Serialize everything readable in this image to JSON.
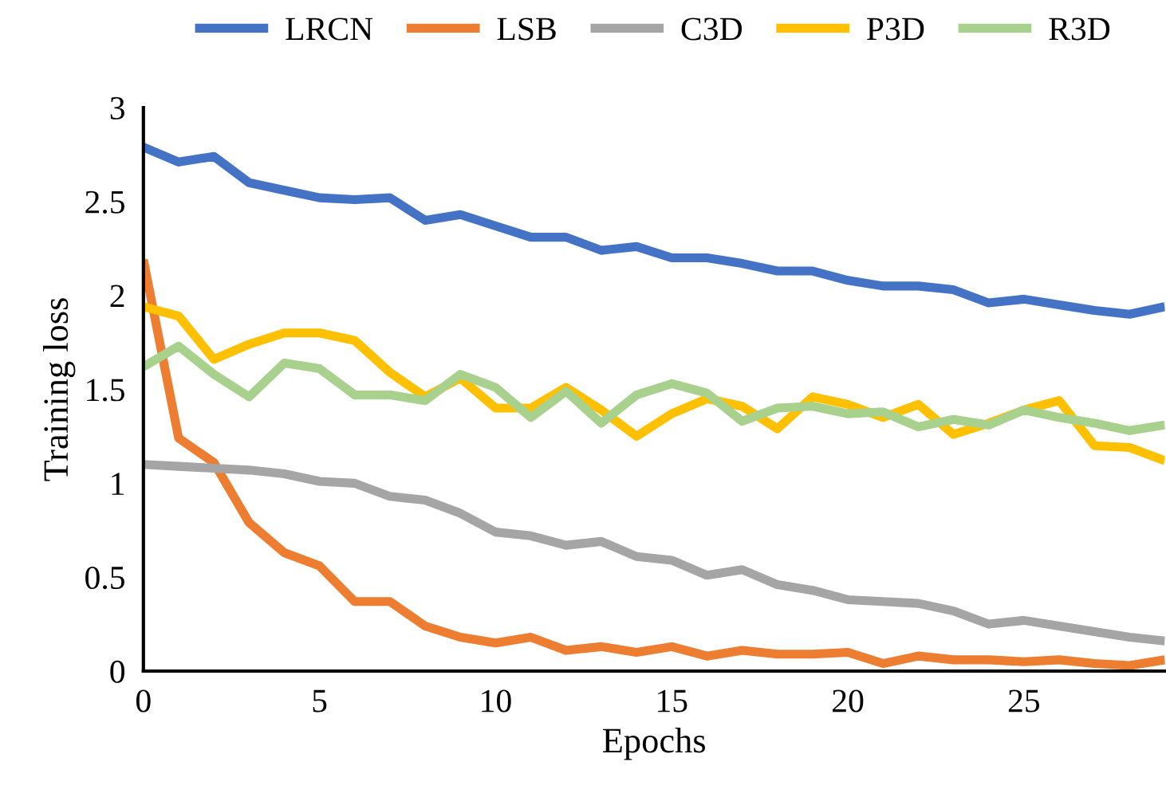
{
  "chart_data": {
    "type": "line",
    "xlabel": "Epochs",
    "ylabel": "Training loss",
    "x": [
      0,
      1,
      2,
      3,
      4,
      5,
      6,
      7,
      8,
      9,
      10,
      11,
      12,
      13,
      14,
      15,
      16,
      17,
      18,
      19,
      20,
      21,
      22,
      23,
      24,
      25,
      26,
      27,
      28,
      29
    ],
    "xlim": [
      0,
      29
    ],
    "xticks": [
      0,
      5,
      10,
      15,
      20,
      25
    ],
    "ylim": [
      0,
      3
    ],
    "yticks": [
      0,
      0.5,
      1,
      1.5,
      2,
      2.5,
      3
    ],
    "grid": false,
    "legend": "top",
    "marker": "none",
    "line_style": "solid",
    "series": [
      {
        "name": "LRCN",
        "color": "#4472c4",
        "values": [
          2.79,
          2.71,
          2.74,
          2.6,
          2.56,
          2.52,
          2.51,
          2.52,
          2.4,
          2.43,
          2.37,
          2.31,
          2.31,
          2.24,
          2.26,
          2.2,
          2.2,
          2.17,
          2.13,
          2.13,
          2.08,
          2.05,
          2.05,
          2.03,
          1.96,
          1.98,
          1.95,
          1.92,
          1.9,
          1.94
        ]
      },
      {
        "name": "LSB",
        "color": "#ed7d31",
        "values": [
          2.19,
          1.24,
          1.11,
          0.79,
          0.63,
          0.56,
          0.37,
          0.37,
          0.24,
          0.18,
          0.15,
          0.18,
          0.11,
          0.13,
          0.1,
          0.13,
          0.08,
          0.11,
          0.09,
          0.09,
          0.1,
          0.04,
          0.08,
          0.06,
          0.06,
          0.05,
          0.06,
          0.04,
          0.03,
          0.06
        ]
      },
      {
        "name": "C3D",
        "color": "#a5a5a5",
        "values": [
          1.1,
          1.09,
          1.08,
          1.07,
          1.05,
          1.01,
          1.0,
          0.93,
          0.91,
          0.84,
          0.74,
          0.72,
          0.67,
          0.69,
          0.61,
          0.59,
          0.51,
          0.54,
          0.46,
          0.43,
          0.38,
          0.37,
          0.36,
          0.32,
          0.25,
          0.27,
          0.24,
          0.21,
          0.18,
          0.16
        ]
      },
      {
        "name": "P3D",
        "color": "#ffc000",
        "values": [
          1.94,
          1.89,
          1.66,
          1.74,
          1.8,
          1.8,
          1.76,
          1.59,
          1.46,
          1.56,
          1.4,
          1.4,
          1.51,
          1.39,
          1.25,
          1.37,
          1.45,
          1.41,
          1.29,
          1.46,
          1.42,
          1.35,
          1.42,
          1.26,
          1.32,
          1.39,
          1.44,
          1.2,
          1.19,
          1.12
        ]
      },
      {
        "name": "R3D",
        "color": "#a9d18e",
        "values": [
          1.62,
          1.73,
          1.58,
          1.46,
          1.64,
          1.61,
          1.47,
          1.47,
          1.44,
          1.58,
          1.51,
          1.35,
          1.49,
          1.32,
          1.47,
          1.53,
          1.48,
          1.33,
          1.4,
          1.41,
          1.37,
          1.38,
          1.3,
          1.34,
          1.31,
          1.39,
          1.35,
          1.32,
          1.28,
          1.31
        ]
      }
    ]
  }
}
